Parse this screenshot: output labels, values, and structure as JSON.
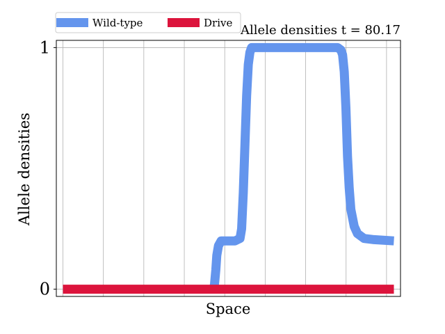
{
  "chart_data": {
    "type": "line",
    "title": "Allele densities t = 80.17",
    "xlabel": "Space",
    "ylabel": "Allele densities",
    "ylim": [
      -0.03,
      1.03
    ],
    "xlim": [
      -0.02,
      1.02
    ],
    "yticks": [
      {
        "value": 0,
        "label": "0"
      },
      {
        "value": 1,
        "label": "1"
      }
    ],
    "xgrid": [
      0.0,
      0.1222,
      0.2444,
      0.3667,
      0.4889,
      0.6111,
      0.7333,
      0.8556,
      0.9778
    ],
    "grid": true,
    "legend": {
      "placement": "top-left, above axes",
      "columns": 2
    },
    "series": [
      {
        "name": "Wild-type",
        "color": "#6495ED",
        "x": [
          0.455,
          0.458,
          0.462,
          0.465,
          0.47,
          0.478,
          0.5,
          0.52,
          0.535,
          0.54,
          0.545,
          0.55,
          0.555,
          0.56,
          0.565,
          0.57,
          0.575,
          0.585,
          0.6,
          0.7,
          0.8,
          0.83,
          0.84,
          0.845,
          0.85,
          0.855,
          0.86,
          0.865,
          0.87,
          0.88,
          0.89,
          0.91,
          0.94,
          1.0
        ],
        "y": [
          0.0,
          0.02,
          0.08,
          0.14,
          0.18,
          0.2,
          0.2,
          0.2,
          0.21,
          0.25,
          0.4,
          0.6,
          0.8,
          0.93,
          0.98,
          1.0,
          1.0,
          1.0,
          1.0,
          1.0,
          1.0,
          1.0,
          0.99,
          0.97,
          0.9,
          0.75,
          0.55,
          0.42,
          0.33,
          0.26,
          0.23,
          0.21,
          0.205,
          0.2
        ]
      },
      {
        "name": "Drive",
        "color": "#DC143C",
        "x": [
          0.0,
          1.0
        ],
        "y": [
          0.0,
          0.0
        ]
      }
    ]
  }
}
